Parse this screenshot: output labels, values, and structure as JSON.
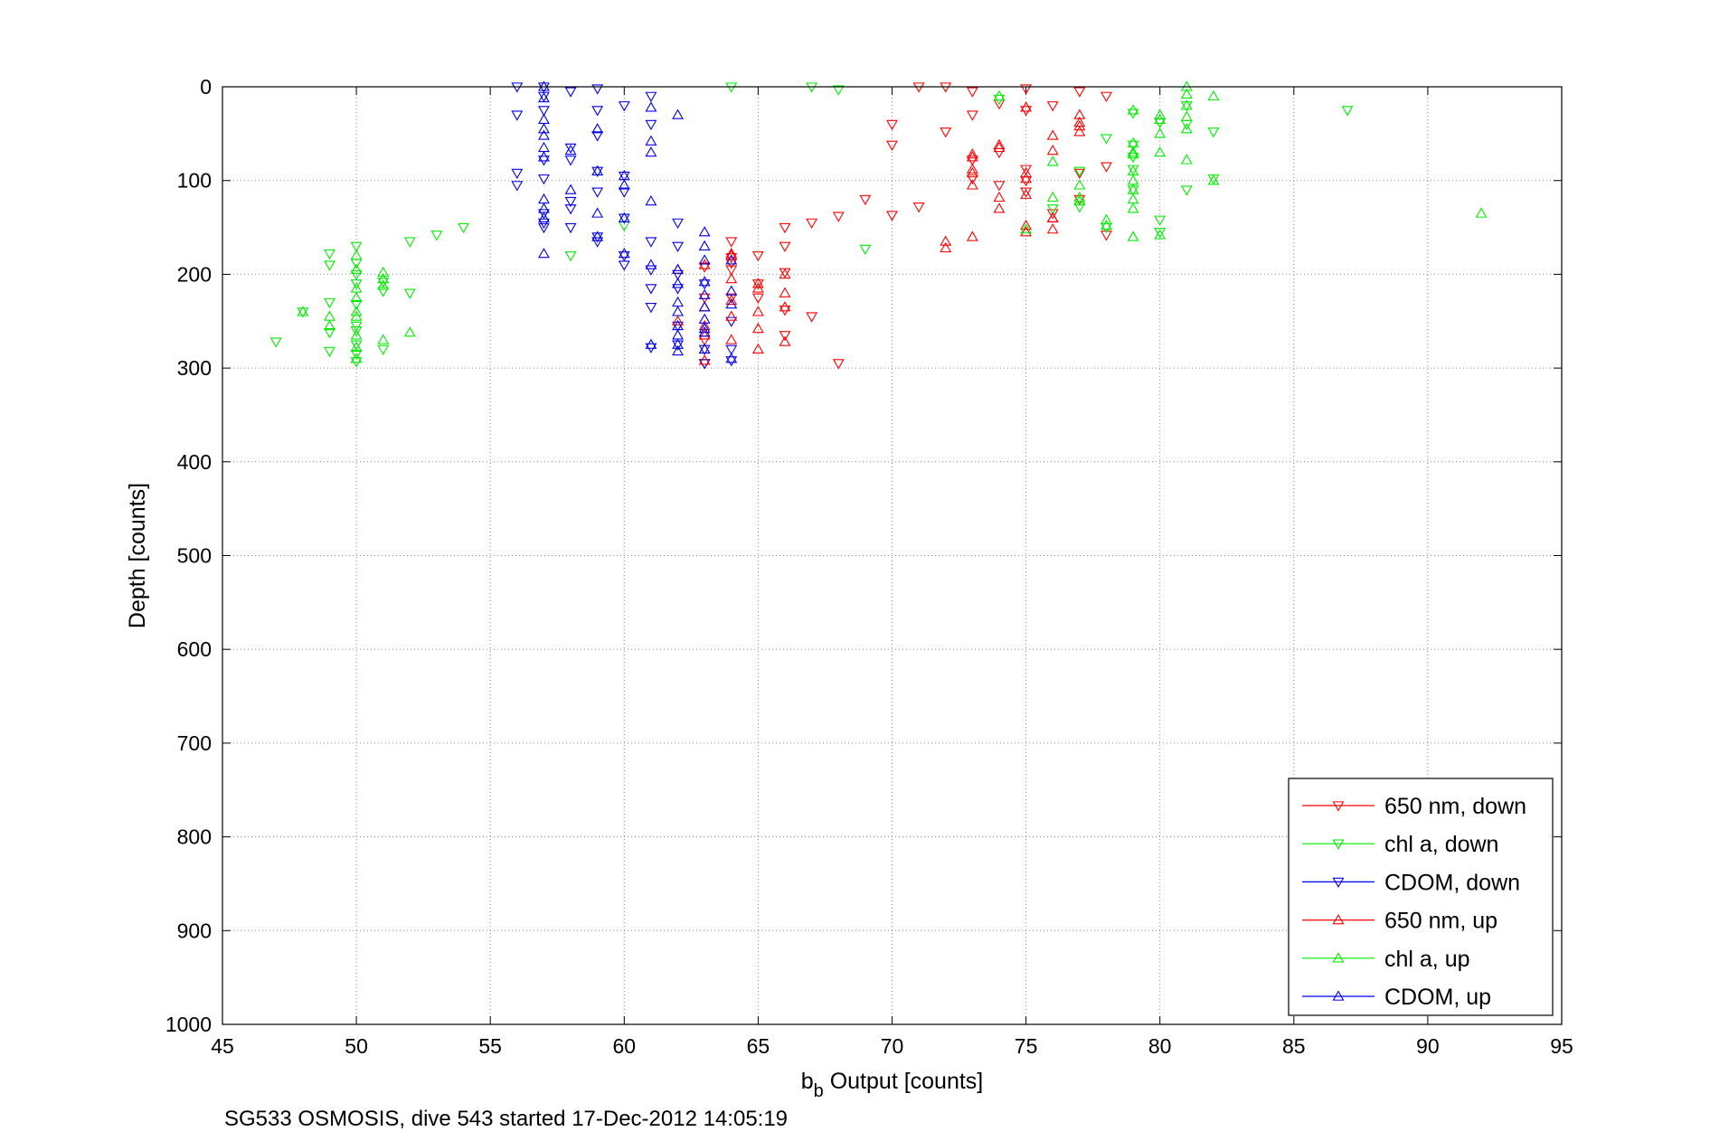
{
  "chart_data": {
    "type": "scatter",
    "title": "",
    "xlabel_main": "b",
    "xlabel_sub": "b",
    "xlabel_rest": " Output [counts]",
    "ylabel": "Depth [counts]",
    "xlim": [
      45,
      95
    ],
    "ylim": [
      0,
      1000
    ],
    "y_reversed": true,
    "xticks": [
      45,
      50,
      55,
      60,
      65,
      70,
      75,
      80,
      85,
      90,
      95
    ],
    "yticks": [
      0,
      100,
      200,
      300,
      400,
      500,
      600,
      700,
      800,
      900,
      1000
    ],
    "grid": true,
    "legend_position": "bottom-right",
    "footer": "SG533 OSMOSIS, dive 543 started 17-Dec-2012 14:05:19",
    "series": [
      {
        "name": "650 nm, down",
        "color": "#ff0000",
        "marker": "triangle-down",
        "points": [
          [
            71,
            0
          ],
          [
            72,
            0
          ],
          [
            73,
            5
          ],
          [
            74,
            18
          ],
          [
            75,
            2
          ],
          [
            75,
            25
          ],
          [
            76,
            20
          ],
          [
            77,
            5
          ],
          [
            78,
            10
          ],
          [
            73,
            30
          ],
          [
            74,
            70
          ],
          [
            72,
            48
          ],
          [
            70,
            40
          ],
          [
            70,
            62
          ],
          [
            74,
            105
          ],
          [
            73,
            78
          ],
          [
            75,
            88
          ],
          [
            75,
            100
          ],
          [
            75,
            112
          ],
          [
            73,
            98
          ],
          [
            77,
            92
          ],
          [
            77,
            120
          ],
          [
            76,
            135
          ],
          [
            78,
            85
          ],
          [
            78,
            158
          ],
          [
            80,
            38
          ],
          [
            71,
            128
          ],
          [
            70,
            137
          ],
          [
            69,
            120
          ],
          [
            67,
            145
          ],
          [
            66,
            150
          ],
          [
            66,
            170
          ],
          [
            68,
            138
          ],
          [
            64,
            165
          ],
          [
            64,
            182
          ],
          [
            64,
            195
          ],
          [
            64,
            188
          ],
          [
            63,
            192
          ],
          [
            65,
            180
          ],
          [
            65,
            210
          ],
          [
            65,
            225
          ],
          [
            66,
            238
          ],
          [
            66,
            198
          ],
          [
            67,
            245
          ],
          [
            63,
            225
          ],
          [
            63,
            270
          ],
          [
            64,
            225
          ],
          [
            68,
            295
          ],
          [
            63,
            295
          ],
          [
            66,
            265
          ]
        ]
      },
      {
        "name": "chl a, down",
        "color": "#00ee00",
        "marker": "triangle-down",
        "points": [
          [
            64,
            0
          ],
          [
            67,
            0
          ],
          [
            68,
            3
          ],
          [
            74,
            13
          ],
          [
            81,
            20
          ],
          [
            87,
            25
          ],
          [
            79,
            28
          ],
          [
            79,
            62
          ],
          [
            79,
            75
          ],
          [
            81,
            40
          ],
          [
            78,
            55
          ],
          [
            80,
            38
          ],
          [
            82,
            48
          ],
          [
            81,
            110
          ],
          [
            82,
            98
          ],
          [
            80,
            142
          ],
          [
            80,
            155
          ],
          [
            79,
            88
          ],
          [
            79,
            110
          ],
          [
            77,
            128
          ],
          [
            77,
            90
          ],
          [
            78,
            150
          ],
          [
            76,
            130
          ],
          [
            54,
            150
          ],
          [
            53,
            158
          ],
          [
            52,
            165
          ],
          [
            50,
            170
          ],
          [
            49,
            178
          ],
          [
            49,
            190
          ],
          [
            50,
            188
          ],
          [
            50,
            200
          ],
          [
            50,
            210
          ],
          [
            51,
            208
          ],
          [
            51,
            218
          ],
          [
            50,
            232
          ],
          [
            50,
            255
          ],
          [
            49,
            230
          ],
          [
            48,
            240
          ],
          [
            49,
            262
          ],
          [
            49,
            282
          ],
          [
            47,
            272
          ],
          [
            50,
            275
          ],
          [
            50,
            293
          ],
          [
            51,
            280
          ],
          [
            50,
            285
          ],
          [
            50,
            260
          ],
          [
            52,
            220
          ],
          [
            58,
            180
          ],
          [
            60,
            148
          ],
          [
            69,
            173
          ]
        ]
      },
      {
        "name": "CDOM, down",
        "color": "#0000ee",
        "marker": "triangle-down",
        "points": [
          [
            56,
            0
          ],
          [
            57,
            0
          ],
          [
            57,
            10
          ],
          [
            59,
            2
          ],
          [
            58,
            5
          ],
          [
            56,
            30
          ],
          [
            57,
            25
          ],
          [
            57,
            78
          ],
          [
            59,
            52
          ],
          [
            59,
            25
          ],
          [
            60,
            20
          ],
          [
            61,
            10
          ],
          [
            61,
            40
          ],
          [
            58,
            65
          ],
          [
            58,
            78
          ],
          [
            59,
            90
          ],
          [
            59,
            112
          ],
          [
            60,
            95
          ],
          [
            60,
            112
          ],
          [
            60,
            140
          ],
          [
            57,
            98
          ],
          [
            56,
            92
          ],
          [
            56,
            105
          ],
          [
            57,
            135
          ],
          [
            57,
            150
          ],
          [
            58,
            122
          ],
          [
            58,
            130
          ],
          [
            58,
            150
          ],
          [
            59,
            165
          ],
          [
            60,
            180
          ],
          [
            61,
            165
          ],
          [
            61,
            195
          ],
          [
            61,
            215
          ],
          [
            62,
            170
          ],
          [
            62,
            145
          ],
          [
            61,
            235
          ],
          [
            62,
            215
          ],
          [
            62,
            275
          ],
          [
            63,
            280
          ],
          [
            63,
            210
          ],
          [
            63,
            295
          ],
          [
            64,
            250
          ],
          [
            64,
            280
          ],
          [
            64,
            292
          ],
          [
            62,
            200
          ],
          [
            62,
            255
          ],
          [
            61,
            278
          ],
          [
            60,
            190
          ],
          [
            59,
            160
          ],
          [
            57,
            145
          ]
        ]
      },
      {
        "name": "650 nm, up",
        "color": "#ff0000",
        "marker": "triangle-up",
        "points": [
          [
            72,
            165
          ],
          [
            72,
            172
          ],
          [
            73,
            160
          ],
          [
            73,
            105
          ],
          [
            73,
            92
          ],
          [
            73,
            75
          ],
          [
            74,
            118
          ],
          [
            74,
            130
          ],
          [
            74,
            62
          ],
          [
            75,
            155
          ],
          [
            75,
            115
          ],
          [
            75,
            98
          ],
          [
            75,
            92
          ],
          [
            76,
            140
          ],
          [
            76,
            152
          ],
          [
            76,
            68
          ],
          [
            76,
            52
          ],
          [
            77,
            38
          ],
          [
            77,
            48
          ],
          [
            77,
            30
          ],
          [
            75,
            148
          ],
          [
            63,
            190
          ],
          [
            63,
            235
          ],
          [
            63,
            255
          ],
          [
            63,
            265
          ],
          [
            64,
            270
          ],
          [
            64,
            228
          ],
          [
            64,
            245
          ],
          [
            64,
            205
          ],
          [
            64,
            178
          ],
          [
            65,
            215
          ],
          [
            65,
            240
          ],
          [
            65,
            258
          ],
          [
            65,
            280
          ],
          [
            66,
            200
          ],
          [
            66,
            220
          ],
          [
            66,
            272
          ],
          [
            62,
            195
          ],
          [
            62,
            250
          ],
          [
            63,
            280
          ],
          [
            73,
            72
          ],
          [
            74,
            65
          ],
          [
            75,
            22
          ],
          [
            76,
            140
          ],
          [
            77,
            42
          ],
          [
            73,
            88
          ],
          [
            65,
            210
          ],
          [
            66,
            235
          ],
          [
            63,
            292
          ],
          [
            64,
            180
          ]
        ]
      },
      {
        "name": "chl a, up",
        "color": "#00ee00",
        "marker": "triangle-up",
        "points": [
          [
            81,
            0
          ],
          [
            81,
            8
          ],
          [
            82,
            10
          ],
          [
            81,
            32
          ],
          [
            80,
            50
          ],
          [
            80,
            70
          ],
          [
            79,
            70
          ],
          [
            79,
            100
          ],
          [
            79,
            120
          ],
          [
            79,
            130
          ],
          [
            79,
            90
          ],
          [
            80,
            30
          ],
          [
            81,
            78
          ],
          [
            82,
            100
          ],
          [
            80,
            158
          ],
          [
            79,
            160
          ],
          [
            78,
            142
          ],
          [
            77,
            118
          ],
          [
            77,
            105
          ],
          [
            76,
            118
          ],
          [
            76,
            80
          ],
          [
            75,
            152
          ],
          [
            74,
            10
          ],
          [
            92,
            135
          ],
          [
            50,
            195
          ],
          [
            50,
            215
          ],
          [
            50,
            245
          ],
          [
            50,
            265
          ],
          [
            50,
            290
          ],
          [
            50,
            180
          ],
          [
            49,
            245
          ],
          [
            48,
            240
          ],
          [
            51,
            198
          ],
          [
            51,
            270
          ],
          [
            51,
            205
          ],
          [
            52,
            262
          ],
          [
            79,
            25
          ],
          [
            79,
            60
          ],
          [
            80,
            35
          ],
          [
            81,
            45
          ],
          [
            78,
            148
          ],
          [
            77,
            122
          ],
          [
            79,
            72
          ],
          [
            50,
            225
          ],
          [
            50,
            240
          ],
          [
            49,
            255
          ],
          [
            50,
            278
          ],
          [
            51,
            212
          ],
          [
            79,
            110
          ],
          [
            81,
            20
          ]
        ]
      },
      {
        "name": "CDOM, up",
        "color": "#0000ee",
        "marker": "triangle-up",
        "points": [
          [
            57,
            0
          ],
          [
            57,
            12
          ],
          [
            57,
            35
          ],
          [
            57,
            45
          ],
          [
            57,
            52
          ],
          [
            57,
            65
          ],
          [
            57,
            75
          ],
          [
            58,
            68
          ],
          [
            59,
            45
          ],
          [
            59,
            90
          ],
          [
            59,
            135
          ],
          [
            60,
            95
          ],
          [
            60,
            105
          ],
          [
            60,
            140
          ],
          [
            61,
            58
          ],
          [
            61,
            70
          ],
          [
            61,
            22
          ],
          [
            62,
            30
          ],
          [
            57,
            120
          ],
          [
            57,
            130
          ],
          [
            57,
            178
          ],
          [
            58,
            110
          ],
          [
            59,
            160
          ],
          [
            60,
            178
          ],
          [
            61,
            122
          ],
          [
            61,
            190
          ],
          [
            61,
            275
          ],
          [
            62,
            195
          ],
          [
            62,
            210
          ],
          [
            62,
            230
          ],
          [
            62,
            255
          ],
          [
            62,
            265
          ],
          [
            62,
            282
          ],
          [
            63,
            155
          ],
          [
            63,
            170
          ],
          [
            63,
            185
          ],
          [
            63,
            208
          ],
          [
            63,
            222
          ],
          [
            63,
            235
          ],
          [
            63,
            248
          ],
          [
            63,
            258
          ],
          [
            64,
            218
          ],
          [
            64,
            232
          ],
          [
            64,
            290
          ],
          [
            62,
            275
          ],
          [
            63,
            280
          ],
          [
            63,
            262
          ],
          [
            64,
            185
          ],
          [
            62,
            240
          ],
          [
            57,
            140
          ]
        ]
      }
    ]
  }
}
